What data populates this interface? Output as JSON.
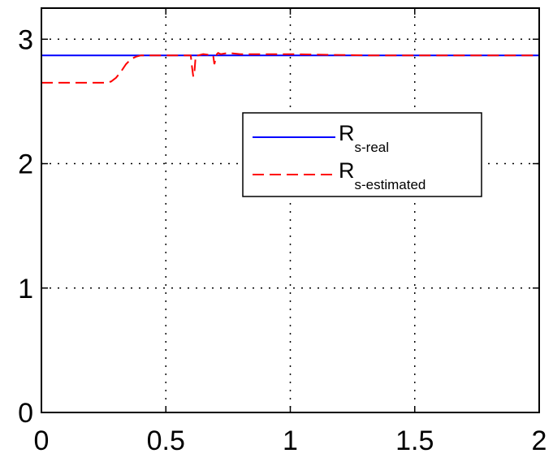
{
  "chart_data": {
    "type": "line",
    "title": "",
    "xlabel": "",
    "ylabel": "",
    "xlim": [
      0,
      2
    ],
    "ylim": [
      0,
      3.25
    ],
    "xticks": [
      0,
      0.5,
      1,
      1.5,
      2
    ],
    "xtick_labels": [
      "0",
      "0.5",
      "1",
      "1.5",
      "2"
    ],
    "yticks": [
      0,
      1,
      2,
      3
    ],
    "ytick_labels": [
      "0",
      "1",
      "2",
      "3"
    ],
    "grid": true,
    "legend_position": "center-right",
    "series": [
      {
        "name": "R",
        "name_subscript": "s-real",
        "color": "#0000ff",
        "dash": "solid",
        "x": [
          0,
          2
        ],
        "y": [
          2.87,
          2.87
        ]
      },
      {
        "name": "R",
        "name_subscript": "s-estimated",
        "color": "#ff0000",
        "dash": "dashed",
        "x": [
          0,
          0.26,
          0.28,
          0.3,
          0.32,
          0.34,
          0.36,
          0.38,
          0.4,
          0.42,
          0.6,
          0.605,
          0.61,
          0.615,
          0.62,
          0.63,
          0.65,
          0.69,
          0.695,
          0.7,
          0.705,
          0.71,
          0.72,
          0.75,
          0.8,
          1.0,
          1.3,
          1.6,
          2.0
        ],
        "y": [
          2.65,
          2.65,
          2.66,
          2.69,
          2.74,
          2.8,
          2.84,
          2.86,
          2.87,
          2.87,
          2.87,
          2.78,
          2.7,
          2.74,
          2.87,
          2.87,
          2.88,
          2.87,
          2.8,
          2.84,
          2.88,
          2.89,
          2.88,
          2.89,
          2.88,
          2.88,
          2.87,
          2.87,
          2.87
        ]
      }
    ]
  }
}
